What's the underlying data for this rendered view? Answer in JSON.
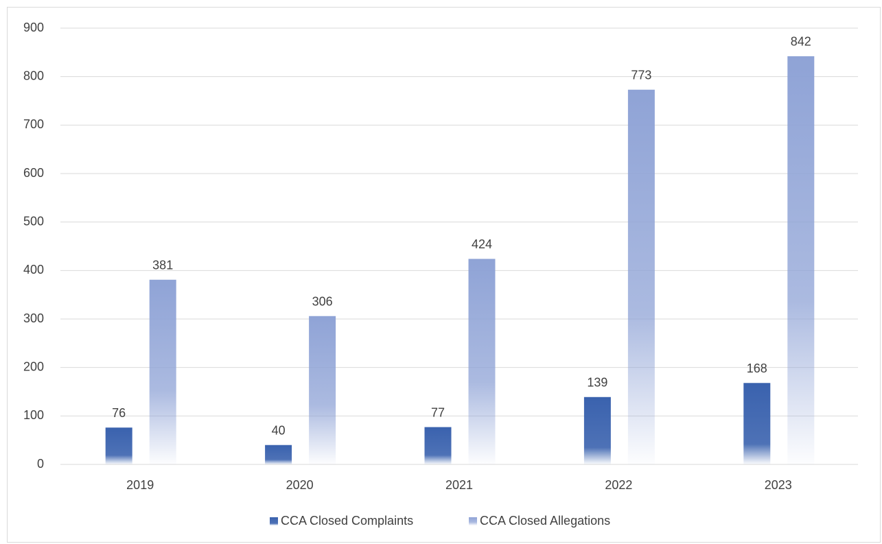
{
  "chart_data": {
    "type": "bar",
    "categories": [
      "2019",
      "2020",
      "2021",
      "2022",
      "2023"
    ],
    "series": [
      {
        "name": "CCA Closed Complaints",
        "color": "#3a62ae",
        "values": [
          76,
          40,
          77,
          139,
          168
        ]
      },
      {
        "name": "CCA Closed Allegations",
        "color": "#8fa3d6",
        "values": [
          381,
          306,
          424,
          773,
          842
        ]
      }
    ],
    "ylim": [
      0,
      900
    ],
    "yticks": [
      0,
      100,
      200,
      300,
      400,
      500,
      600,
      700,
      800,
      900
    ],
    "grid": true,
    "legend": "bottom"
  }
}
